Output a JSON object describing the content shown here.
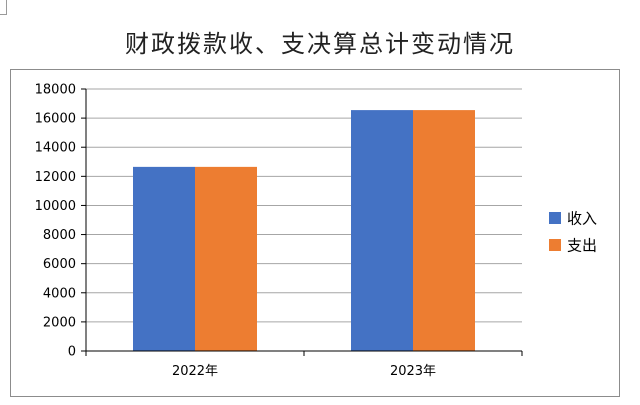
{
  "chart_data": {
    "type": "bar",
    "title": "财政拨款收、支决算总计变动情况",
    "categories": [
      "2022年",
      "2023年"
    ],
    "series": [
      {
        "name": "收入",
        "color": "#4472C4",
        "values": [
          12650,
          16550
        ]
      },
      {
        "name": "支出",
        "color": "#ED7D31",
        "values": [
          12650,
          16550
        ]
      }
    ],
    "ylim": [
      0,
      18000
    ],
    "yticks": [
      0,
      2000,
      4000,
      6000,
      8000,
      10000,
      12000,
      14000,
      16000,
      18000
    ],
    "grid": true,
    "legend_position": "right"
  }
}
